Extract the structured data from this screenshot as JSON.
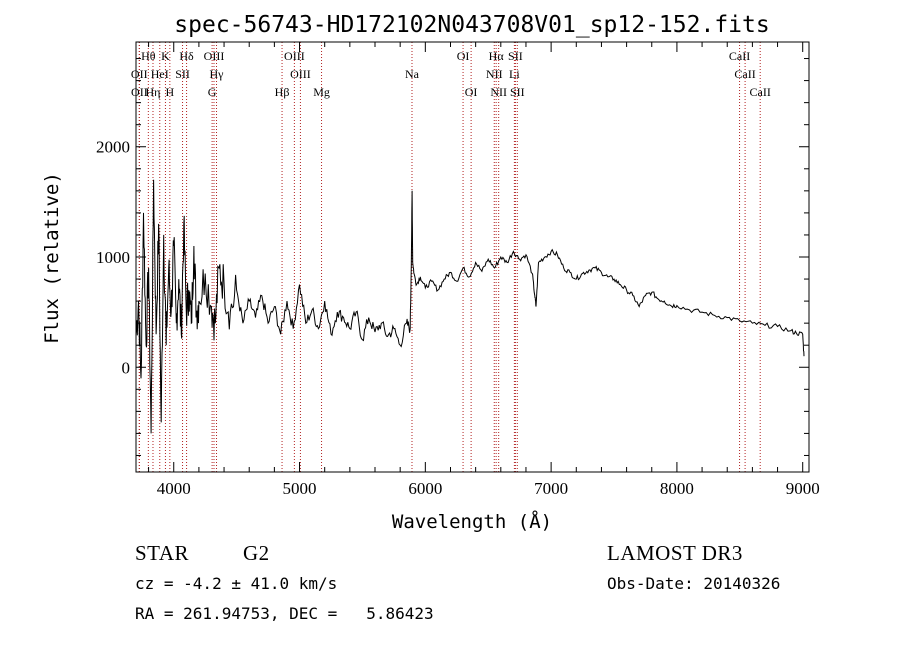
{
  "chart_data": {
    "type": "line",
    "title": "spec-56743-HD172102N043708V01_sp12-152.fits",
    "xlabel": "Wavelength (Å)",
    "ylabel": "Flux (relative)",
    "xlim": [
      3700,
      9050
    ],
    "ylim": [
      -950,
      2950
    ],
    "xticks": [
      4000,
      5000,
      6000,
      7000,
      8000,
      9000
    ],
    "yticks": [
      0,
      1000,
      2000
    ],
    "xtick_labels": [
      "4000",
      "5000",
      "6000",
      "7000",
      "8000",
      "9000"
    ],
    "ytick_labels": [
      "0",
      "1000",
      "2000"
    ],
    "series": [
      {
        "name": "flux",
        "x": [
          3700,
          3720,
          3740,
          3760,
          3780,
          3800,
          3820,
          3840,
          3860,
          3880,
          3900,
          3920,
          3940,
          3960,
          3980,
          4000,
          4020,
          4040,
          4060,
          4080,
          4100,
          4120,
          4140,
          4160,
          4180,
          4200,
          4250,
          4300,
          4330,
          4360,
          4400,
          4450,
          4500,
          4550,
          4600,
          4650,
          4700,
          4750,
          4800,
          4850,
          4900,
          4950,
          5000,
          5050,
          5100,
          5150,
          5200,
          5250,
          5300,
          5350,
          5400,
          5450,
          5500,
          5550,
          5600,
          5650,
          5700,
          5750,
          5800,
          5850,
          5880,
          5890,
          5895,
          5900,
          5910,
          5930,
          5960,
          6000,
          6050,
          6100,
          6150,
          6200,
          6250,
          6300,
          6350,
          6400,
          6450,
          6500,
          6550,
          6600,
          6650,
          6700,
          6750,
          6800,
          6850,
          6870,
          6880,
          6900,
          6950,
          7000,
          7050,
          7100,
          7150,
          7200,
          7250,
          7300,
          7350,
          7400,
          7450,
          7500,
          7550,
          7600,
          7650,
          7700,
          7750,
          7800,
          7850,
          7900,
          7950,
          8000,
          8100,
          8200,
          8300,
          8400,
          8500,
          8600,
          8700,
          8800,
          8900,
          8950,
          9000,
          9010
        ],
        "y": [
          300,
          600,
          -100,
          1400,
          200,
          900,
          -600,
          1700,
          300,
          1300,
          -500,
          1200,
          200,
          900,
          500,
          1100,
          400,
          800,
          300,
          1300,
          500,
          700,
          400,
          1100,
          500,
          600,
          850,
          550,
          400,
          900,
          750,
          500,
          700,
          400,
          600,
          450,
          650,
          400,
          550,
          300,
          600,
          350,
          750,
          400,
          520,
          350,
          600,
          300,
          500,
          450,
          350,
          500,
          250,
          450,
          320,
          400,
          280,
          350,
          200,
          400,
          350,
          1100,
          1600,
          950,
          850,
          750,
          820,
          720,
          780,
          700,
          800,
          860,
          780,
          900,
          820,
          950,
          870,
          980,
          900,
          1000,
          950,
          1050,
          980,
          1020,
          850,
          650,
          550,
          950,
          1000,
          1050,
          1020,
          900,
          860,
          800,
          850,
          880,
          900,
          860,
          820,
          800,
          750,
          700,
          650,
          550,
          650,
          680,
          620,
          600,
          560,
          560,
          520,
          500,
          470,
          450,
          420,
          400,
          380,
          370,
          330,
          310,
          300,
          100
        ],
        "fill": "#000000"
      }
    ],
    "lines": [
      {
        "label": "OII",
        "x": 3727,
        "row": 2
      },
      {
        "label": "Hθ",
        "x": 3798,
        "row": 0
      },
      {
        "label": "OII",
        "x": 3726,
        "row": 1
      },
      {
        "label": "Hη",
        "x": 3835,
        "row": 2
      },
      {
        "label": "HeI",
        "x": 3889,
        "row": 1
      },
      {
        "label": "K",
        "x": 3934,
        "row": 0
      },
      {
        "label": "H",
        "x": 3969,
        "row": 2
      },
      {
        "label": "SII",
        "x": 4070,
        "row": 1
      },
      {
        "label": "Hδ",
        "x": 4102,
        "row": 0
      },
      {
        "label": "OIII",
        "x": 4320,
        "row": 0
      },
      {
        "label": "Hγ",
        "x": 4340,
        "row": 1
      },
      {
        "label": "G",
        "x": 4305,
        "row": 2
      },
      {
        "label": "Hβ",
        "x": 4861,
        "row": 2
      },
      {
        "label": "OIII",
        "x": 4959,
        "row": 0
      },
      {
        "label": "OIII",
        "x": 5007,
        "row": 1
      },
      {
        "label": "Mg",
        "x": 5175,
        "row": 2
      },
      {
        "label": "Na",
        "x": 5894,
        "row": 1
      },
      {
        "label": "OI",
        "x": 6300,
        "row": 0
      },
      {
        "label": "OI",
        "x": 6364,
        "row": 2
      },
      {
        "label": "Hα",
        "x": 6563,
        "row": 0
      },
      {
        "label": "NII",
        "x": 6548,
        "row": 1
      },
      {
        "label": "NII",
        "x": 6583,
        "row": 2
      },
      {
        "label": "SII",
        "x": 6716,
        "row": 0
      },
      {
        "label": "Li",
        "x": 6708,
        "row": 1
      },
      {
        "label": "SII",
        "x": 6731,
        "row": 2
      },
      {
        "label": "CaII",
        "x": 8498,
        "row": 0
      },
      {
        "label": "CaII",
        "x": 8542,
        "row": 1
      },
      {
        "label": "CaII",
        "x": 8662,
        "row": 2
      }
    ]
  },
  "info": {
    "object_class": "STAR",
    "subclass": "G2",
    "survey": "LAMOST DR3",
    "cz": "cz = -4.2 ± 41.0 km/s",
    "obs_date": "Obs-Date: 20140326",
    "radec": "RA = 261.94753, DEC =   5.86423"
  },
  "colors": {
    "line_markers": "#b22222",
    "spectrum": "#000000",
    "axes": "#000000"
  }
}
